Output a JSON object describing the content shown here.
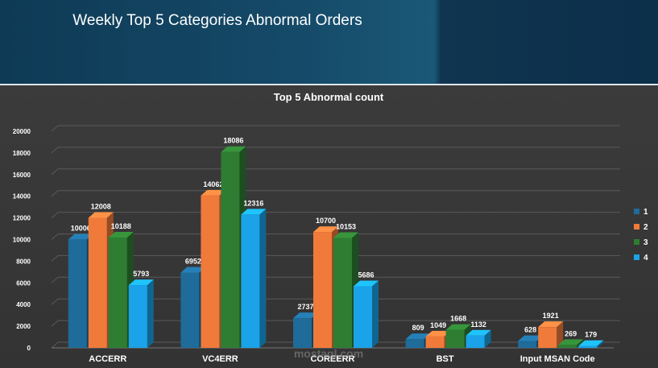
{
  "header": {
    "title": "Weekly Top 5 Categories Abnormal Orders"
  },
  "watermark": "mostaql.com",
  "chart_data": {
    "type": "bar",
    "title": "Top 5 Abnormal count",
    "categories": [
      "ACCERR",
      "VC4ERR",
      "COREERR",
      "BST",
      "Input MSAN Code"
    ],
    "series": [
      {
        "name": "1",
        "color": "#1f6b99",
        "values": [
          10006,
          6952,
          2737,
          809,
          628
        ]
      },
      {
        "name": "2",
        "color": "#f07a3a",
        "values": [
          12008,
          14062,
          10700,
          1049,
          1921
        ]
      },
      {
        "name": "3",
        "color": "#2e7d32",
        "values": [
          10188,
          18086,
          10153,
          1668,
          269
        ]
      },
      {
        "name": "4",
        "color": "#1aa3e8",
        "values": [
          5793,
          12316,
          5686,
          1132,
          179
        ]
      }
    ],
    "ylim": [
      0,
      20000
    ],
    "yticks": [
      0,
      2000,
      4000,
      6000,
      8000,
      10000,
      12000,
      14000,
      16000,
      18000,
      20000
    ],
    "grid": true,
    "legend_position": "right",
    "style": "3d-clustered"
  }
}
